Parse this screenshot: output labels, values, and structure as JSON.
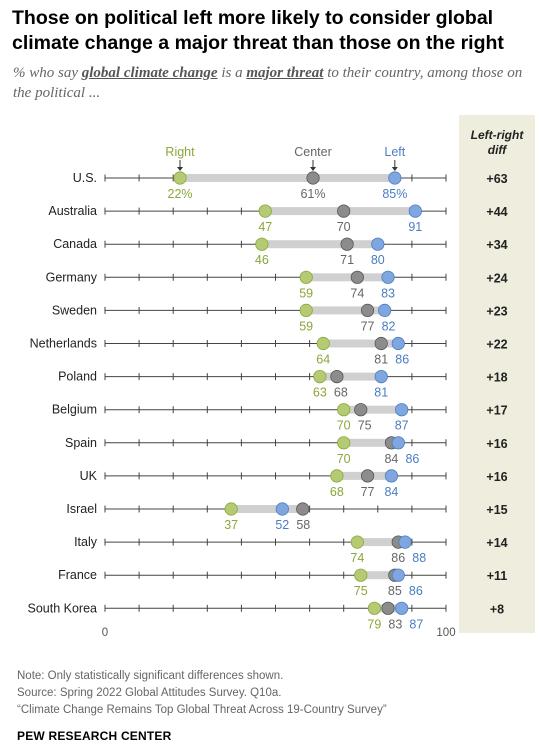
{
  "title": "Those on political left more likely to consider global climate change a major threat than those on the right",
  "subtitle": {
    "part1": "% who say ",
    "emph1": "global climate change",
    "part2": " is a ",
    "emph2": "major threat",
    "part3": " to their country, among those on the political ..."
  },
  "diff_header": "Left-right diff",
  "axis": {
    "min_label": "0",
    "max_label": "100"
  },
  "series_labels": {
    "right": "Right",
    "center": "Center",
    "left": "Left"
  },
  "colors": {
    "right": "#b5cb73",
    "center": "#8c8c8c",
    "left": "#7fa6df",
    "right_text": "#8aa63c",
    "center_text": "#666666",
    "left_text": "#4a7dc2",
    "diff_bg": "#efedde",
    "bar": "#d0d0d0"
  },
  "chart_data": {
    "type": "dot",
    "xlim": [
      0,
      100
    ],
    "categories": [
      "U.S.",
      "Australia",
      "Canada",
      "Germany",
      "Sweden",
      "Netherlands",
      "Poland",
      "Belgium",
      "Spain",
      "UK",
      "Israel",
      "Italy",
      "France",
      "South Korea"
    ],
    "series": [
      {
        "name": "Right",
        "values": [
          22,
          47,
          46,
          59,
          59,
          64,
          63,
          70,
          70,
          68,
          37,
          74,
          75,
          79
        ]
      },
      {
        "name": "Center",
        "values": [
          61,
          70,
          71,
          74,
          77,
          81,
          68,
          75,
          84,
          77,
          58,
          86,
          85,
          83
        ]
      },
      {
        "name": "Left",
        "values": [
          85,
          91,
          80,
          83,
          82,
          86,
          81,
          87,
          86,
          84,
          52,
          88,
          86,
          87
        ]
      }
    ],
    "diff": [
      "+63",
      "+44",
      "+34",
      "+24",
      "+23",
      "+22",
      "+18",
      "+17",
      "+16",
      "+16",
      "+15",
      "+14",
      "+11",
      "+8"
    ],
    "first_row_suffix": "%"
  },
  "notes": [
    "Note: Only statistically significant differences shown.",
    "Source: Spring 2022 Global Attitudes Survey. Q10a.",
    "“Climate Change Remains Top Global Threat Across 19-Country Survey”"
  ],
  "brand": "PEW RESEARCH CENTER"
}
